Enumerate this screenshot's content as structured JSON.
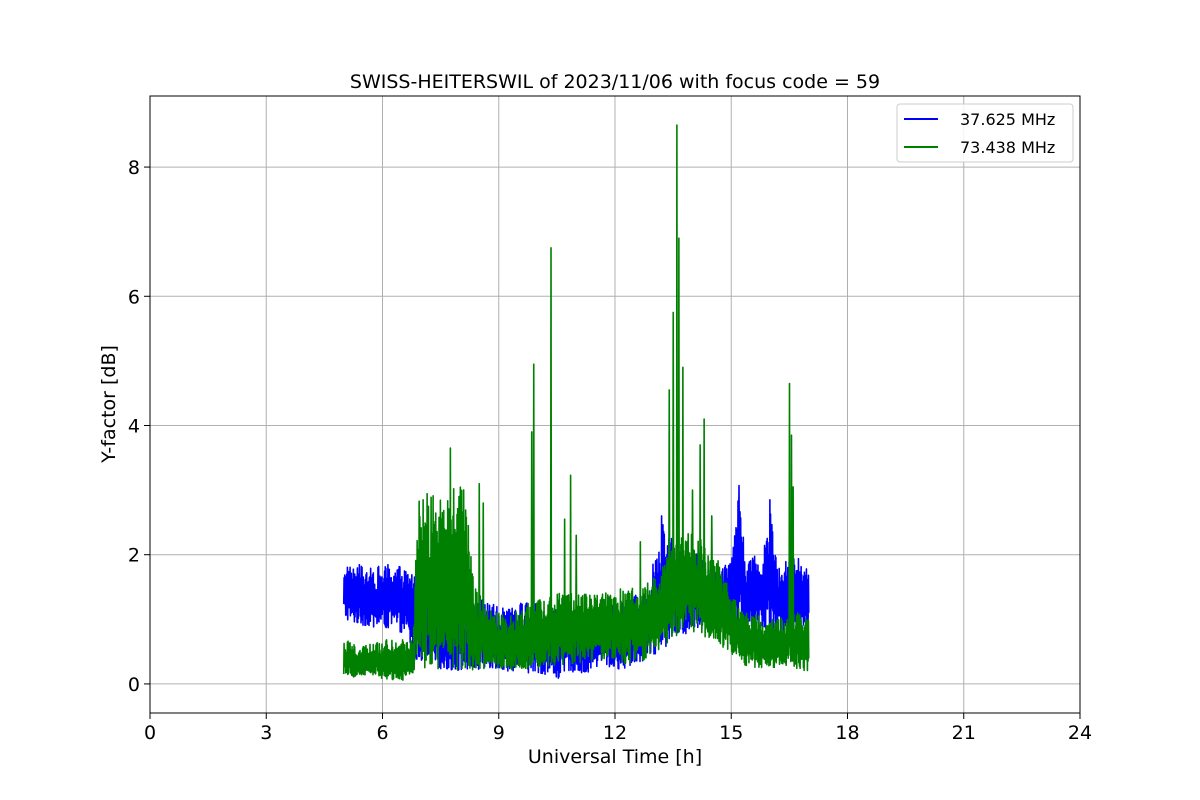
{
  "chart_data": {
    "type": "line",
    "title": "SWISS-HEITERSWIL of 2023/11/06 with focus code = 59",
    "xlabel": "Universal Time [h]",
    "ylabel": "Y-factor [dB]",
    "xlim": [
      0,
      24
    ],
    "ylim": [
      -0.45,
      9.1
    ],
    "xticks": [
      0,
      3,
      6,
      9,
      12,
      15,
      18,
      21,
      24
    ],
    "xtick_labels": [
      "0",
      "3",
      "6",
      "9",
      "12",
      "15",
      "18",
      "21",
      "24"
    ],
    "yticks": [
      0,
      2,
      4,
      6,
      8
    ],
    "ytick_labels": [
      "0",
      "2",
      "4",
      "6",
      "8"
    ],
    "grid": true,
    "legend_position": "top-right",
    "series": [
      {
        "name": "37.625 MHz",
        "color": "#0000ff",
        "x": [
          5.0,
          5.2,
          5.4,
          5.6,
          5.8,
          6.0,
          6.2,
          6.4,
          6.6,
          6.8,
          7.0,
          7.4,
          7.8,
          8.2,
          8.5,
          8.8,
          9.0,
          9.3,
          9.6,
          9.9,
          10.2,
          10.5,
          10.8,
          11.1,
          11.4,
          11.7,
          12.0,
          12.3,
          12.6,
          12.9,
          13.2,
          13.5,
          13.8,
          14.1,
          14.4,
          14.7,
          15.0,
          15.2,
          15.4,
          15.6,
          15.8,
          16.0,
          16.2,
          16.4,
          16.6,
          16.8,
          17.0
        ],
        "low": [
          1.0,
          0.95,
          0.9,
          0.9,
          0.85,
          0.85,
          0.85,
          0.8,
          0.8,
          0.35,
          0.35,
          0.25,
          0.2,
          0.2,
          0.2,
          0.25,
          0.2,
          0.2,
          0.2,
          0.15,
          0.15,
          0.05,
          0.2,
          0.15,
          0.2,
          0.3,
          0.2,
          0.25,
          0.3,
          0.4,
          0.5,
          0.7,
          0.75,
          0.85,
          0.85,
          1.0,
          1.0,
          0.9,
          0.85,
          0.85,
          0.85,
          0.85,
          0.8,
          0.8,
          0.85,
          0.8,
          0.85
        ],
        "high": [
          1.95,
          1.8,
          1.85,
          1.75,
          1.85,
          1.8,
          1.9,
          1.85,
          1.8,
          1.8,
          1.4,
          1.3,
          1.2,
          1.2,
          1.3,
          1.3,
          1.2,
          1.15,
          1.3,
          1.3,
          1.1,
          1.2,
          1.25,
          1.1,
          1.2,
          1.3,
          1.25,
          1.3,
          1.4,
          1.6,
          2.6,
          2.2,
          2.0,
          2.1,
          1.9,
          1.8,
          2.0,
          3.05,
          1.9,
          2.0,
          1.9,
          2.85,
          1.9,
          1.9,
          1.95,
          1.95,
          1.8
        ],
        "spikes": [
          [
            13.2,
            2.6
          ],
          [
            15.2,
            3.07
          ],
          [
            16.0,
            2.85
          ]
        ]
      },
      {
        "name": "73.438 MHz",
        "color": "#008000",
        "x": [
          5.0,
          5.3,
          5.6,
          5.9,
          6.2,
          6.5,
          6.8,
          6.9,
          7.2,
          7.5,
          7.8,
          8.1,
          8.4,
          8.7,
          9.0,
          9.3,
          9.6,
          9.9,
          10.2,
          10.5,
          10.8,
          11.1,
          11.4,
          11.7,
          12.0,
          12.3,
          12.6,
          12.9,
          13.2,
          13.5,
          13.8,
          14.1,
          14.4,
          14.7,
          15.0,
          15.3,
          15.6,
          15.9,
          16.2,
          16.5,
          16.8,
          17.0
        ],
        "low": [
          0.15,
          0.1,
          0.1,
          0.1,
          0.05,
          0.05,
          0.15,
          0.3,
          0.2,
          0.2,
          0.2,
          0.2,
          0.2,
          0.25,
          0.25,
          0.2,
          0.2,
          0.25,
          0.25,
          0.3,
          0.3,
          0.3,
          0.3,
          0.35,
          0.35,
          0.3,
          0.35,
          0.4,
          0.55,
          0.7,
          0.8,
          0.8,
          0.7,
          0.6,
          0.45,
          0.3,
          0.25,
          0.25,
          0.25,
          0.3,
          0.2,
          0.2
        ],
        "high": [
          0.7,
          0.6,
          0.6,
          0.65,
          0.7,
          0.7,
          0.75,
          2.9,
          3.05,
          3.0,
          3.05,
          3.05,
          1.5,
          1.2,
          1.1,
          1.1,
          1.2,
          1.3,
          1.3,
          1.4,
          1.4,
          1.4,
          1.4,
          1.4,
          1.45,
          1.5,
          1.5,
          1.6,
          1.8,
          2.2,
          2.3,
          2.4,
          2.0,
          1.9,
          1.4,
          1.1,
          1.1,
          1.0,
          1.0,
          1.1,
          1.1,
          1.05
        ],
        "spikes": [
          [
            7.75,
            3.65
          ],
          [
            8.5,
            3.1
          ],
          [
            8.6,
            2.8
          ],
          [
            9.85,
            3.9
          ],
          [
            9.9,
            4.95
          ],
          [
            10.35,
            6.75
          ],
          [
            10.7,
            2.55
          ],
          [
            10.85,
            3.23
          ],
          [
            11.0,
            2.3
          ],
          [
            12.65,
            2.2
          ],
          [
            13.4,
            4.55
          ],
          [
            13.5,
            5.75
          ],
          [
            13.6,
            8.65
          ],
          [
            13.65,
            6.9
          ],
          [
            13.75,
            4.9
          ],
          [
            14.0,
            3.0
          ],
          [
            14.2,
            3.7
          ],
          [
            14.3,
            4.1
          ],
          [
            14.5,
            2.6
          ],
          [
            16.5,
            4.65
          ],
          [
            16.55,
            3.85
          ],
          [
            16.6,
            3.05
          ]
        ]
      }
    ]
  }
}
